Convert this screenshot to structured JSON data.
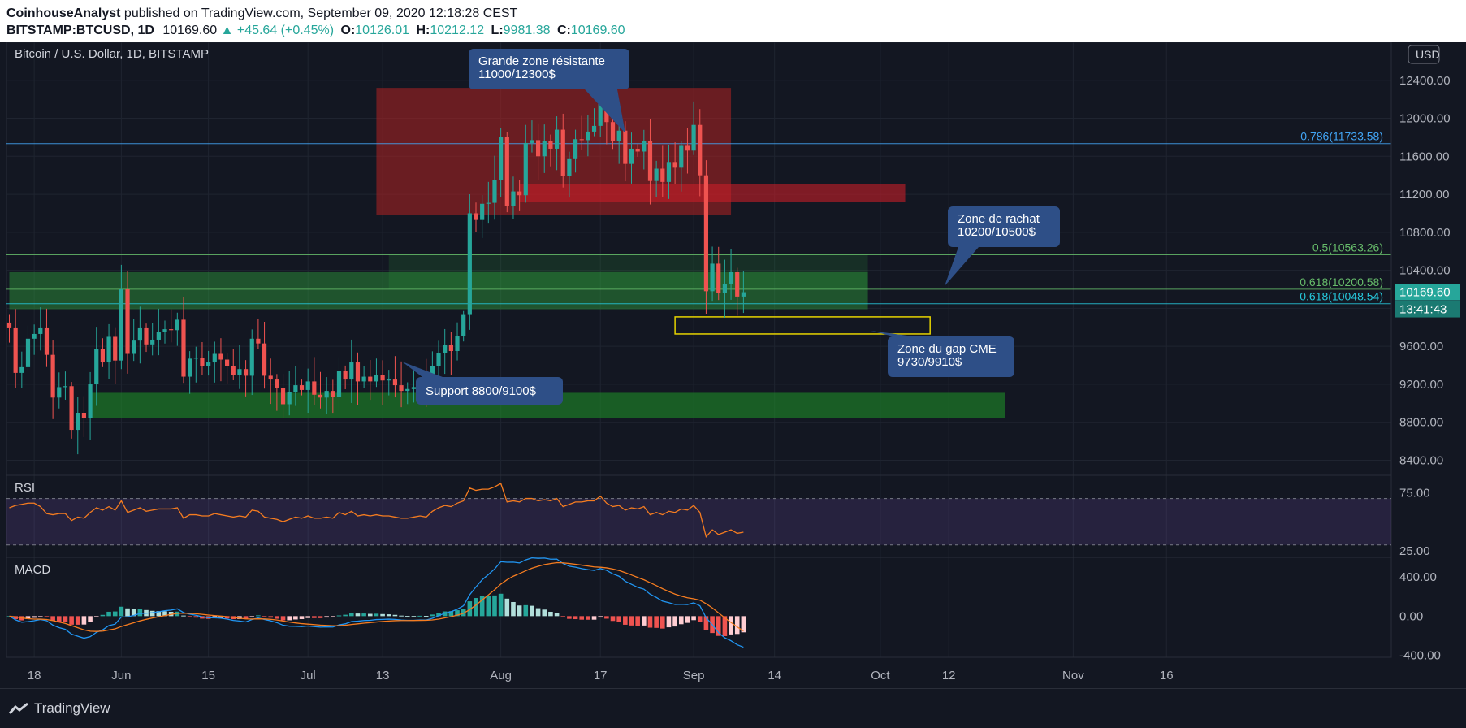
{
  "header": {
    "author": "CoinhouseAnalyst",
    "published_text": " published on TradingView.com, September 09, 2020 12:18:28 CEST",
    "symbol": "BITSTAMP:BTCUSD, 1D",
    "last": "10169.60",
    "change": "▲ +45.64 (+0.45%)",
    "o_label": "O:",
    "o": "10126.01",
    "h_label": "H:",
    "h": "10212.12",
    "l_label": "L:",
    "l": "9981.38",
    "c_label": "C:",
    "c": "10169.60"
  },
  "footer": {
    "brand": "TradingView"
  },
  "colors": {
    "up": "#26a69a",
    "down": "#ef5350",
    "background": "#131722",
    "grid": "#1f2430",
    "text": "#b2b5be",
    "rsi_line": "#f57c20",
    "macd_line": "#2196f3",
    "signal_line": "#f57c20"
  },
  "chart_data": [
    {
      "type": "candlestick",
      "title": "Bitcoin / U.S. Dollar, 1D, BITSTAMP",
      "currency_label": "USD",
      "x_tick_labels": [
        "18",
        "Jun",
        "15",
        "Jul",
        "13",
        "Aug",
        "17",
        "Sep",
        "14",
        "Oct",
        "12",
        "Nov",
        "16"
      ],
      "x_tick_dates": [
        "2020-05-18",
        "2020-06-01",
        "2020-06-15",
        "2020-07-01",
        "2020-07-13",
        "2020-08-01",
        "2020-08-17",
        "2020-09-01",
        "2020-09-14",
        "2020-10-01",
        "2020-10-12",
        "2020-11-01",
        "2020-11-16"
      ],
      "x_range": [
        "2020-05-14",
        "2020-11-16"
      ],
      "y_ticks": [
        8400,
        8800,
        9200,
        9600,
        10000,
        10400,
        10800,
        11200,
        11600,
        12000,
        12400,
        12800
      ],
      "ylim": [
        8250,
        12800
      ],
      "price_label": "10169.60",
      "countdown_label": "13:41:43",
      "closes": [
        {
          "date": "2020-05-14",
          "close": 9790
        },
        {
          "date": "2020-05-15",
          "close": 9320
        },
        {
          "date": "2020-05-16",
          "close": 9380
        },
        {
          "date": "2020-05-17",
          "close": 9680
        },
        {
          "date": "2020-05-18",
          "close": 9730
        },
        {
          "date": "2020-05-19",
          "close": 9790
        },
        {
          "date": "2020-05-20",
          "close": 9510
        },
        {
          "date": "2020-05-21",
          "close": 9060
        },
        {
          "date": "2020-05-22",
          "close": 9170
        },
        {
          "date": "2020-05-23",
          "close": 9180
        },
        {
          "date": "2020-05-24",
          "close": 8720
        },
        {
          "date": "2020-05-25",
          "close": 8900
        },
        {
          "date": "2020-05-26",
          "close": 8840
        },
        {
          "date": "2020-05-27",
          "close": 9200
        },
        {
          "date": "2020-05-28",
          "close": 9570
        },
        {
          "date": "2020-05-29",
          "close": 9430
        },
        {
          "date": "2020-05-30",
          "close": 9700
        },
        {
          "date": "2020-05-31",
          "close": 9450
        },
        {
          "date": "2020-06-01",
          "close": 10200
        },
        {
          "date": "2020-06-02",
          "close": 9520
        },
        {
          "date": "2020-06-03",
          "close": 9660
        },
        {
          "date": "2020-06-04",
          "close": 9790
        },
        {
          "date": "2020-06-05",
          "close": 9620
        },
        {
          "date": "2020-06-06",
          "close": 9670
        },
        {
          "date": "2020-06-07",
          "close": 9750
        },
        {
          "date": "2020-06-08",
          "close": 9780
        },
        {
          "date": "2020-06-09",
          "close": 9770
        },
        {
          "date": "2020-06-10",
          "close": 9880
        },
        {
          "date": "2020-06-11",
          "close": 9280
        },
        {
          "date": "2020-06-12",
          "close": 9470
        },
        {
          "date": "2020-06-13",
          "close": 9480
        },
        {
          "date": "2020-06-14",
          "close": 9390
        },
        {
          "date": "2020-06-15",
          "close": 9430
        },
        {
          "date": "2020-06-16",
          "close": 9520
        },
        {
          "date": "2020-06-17",
          "close": 9460
        },
        {
          "date": "2020-06-18",
          "close": 9390
        },
        {
          "date": "2020-06-19",
          "close": 9300
        },
        {
          "date": "2020-06-20",
          "close": 9360
        },
        {
          "date": "2020-06-21",
          "close": 9290
        },
        {
          "date": "2020-06-22",
          "close": 9680
        },
        {
          "date": "2020-06-23",
          "close": 9630
        },
        {
          "date": "2020-06-24",
          "close": 9290
        },
        {
          "date": "2020-06-25",
          "close": 9250
        },
        {
          "date": "2020-06-26",
          "close": 9160
        },
        {
          "date": "2020-06-27",
          "close": 8990
        },
        {
          "date": "2020-06-28",
          "close": 9120
        },
        {
          "date": "2020-06-29",
          "close": 9190
        },
        {
          "date": "2020-06-30",
          "close": 9140
        },
        {
          "date": "2020-07-01",
          "close": 9230
        },
        {
          "date": "2020-07-02",
          "close": 9090
        },
        {
          "date": "2020-07-03",
          "close": 9060
        },
        {
          "date": "2020-07-04",
          "close": 9130
        },
        {
          "date": "2020-07-05",
          "close": 9070
        },
        {
          "date": "2020-07-06",
          "close": 9340
        },
        {
          "date": "2020-07-07",
          "close": 9250
        },
        {
          "date": "2020-07-08",
          "close": 9430
        },
        {
          "date": "2020-07-09",
          "close": 9230
        },
        {
          "date": "2020-07-10",
          "close": 9280
        },
        {
          "date": "2020-07-11",
          "close": 9230
        },
        {
          "date": "2020-07-12",
          "close": 9300
        },
        {
          "date": "2020-07-13",
          "close": 9240
        },
        {
          "date": "2020-07-14",
          "close": 9250
        },
        {
          "date": "2020-07-15",
          "close": 9190
        },
        {
          "date": "2020-07-16",
          "close": 9130
        },
        {
          "date": "2020-07-17",
          "close": 9150
        },
        {
          "date": "2020-07-18",
          "close": 9170
        },
        {
          "date": "2020-07-19",
          "close": 9210
        },
        {
          "date": "2020-07-20",
          "close": 9160
        },
        {
          "date": "2020-07-21",
          "close": 9390
        },
        {
          "date": "2020-07-22",
          "close": 9530
        },
        {
          "date": "2020-07-23",
          "close": 9610
        },
        {
          "date": "2020-07-24",
          "close": 9550
        },
        {
          "date": "2020-07-25",
          "close": 9710
        },
        {
          "date": "2020-07-26",
          "close": 9930
        },
        {
          "date": "2020-07-27",
          "close": 11000
        },
        {
          "date": "2020-07-28",
          "close": 10930
        },
        {
          "date": "2020-07-29",
          "close": 11100
        },
        {
          "date": "2020-07-30",
          "close": 11110
        },
        {
          "date": "2020-07-31",
          "close": 11350
        },
        {
          "date": "2020-08-01",
          "close": 11800
        },
        {
          "date": "2020-08-02",
          "close": 11080
        },
        {
          "date": "2020-08-03",
          "close": 11230
        },
        {
          "date": "2020-08-04",
          "close": 11190
        },
        {
          "date": "2020-08-05",
          "close": 11740
        },
        {
          "date": "2020-08-06",
          "close": 11770
        },
        {
          "date": "2020-08-07",
          "close": 11600
        },
        {
          "date": "2020-08-08",
          "close": 11760
        },
        {
          "date": "2020-08-09",
          "close": 11680
        },
        {
          "date": "2020-08-10",
          "close": 11880
        },
        {
          "date": "2020-08-11",
          "close": 11390
        },
        {
          "date": "2020-08-12",
          "close": 11570
        },
        {
          "date": "2020-08-13",
          "close": 11780
        },
        {
          "date": "2020-08-14",
          "close": 11770
        },
        {
          "date": "2020-08-15",
          "close": 11860
        },
        {
          "date": "2020-08-16",
          "close": 11920
        },
        {
          "date": "2020-08-17",
          "close": 12300
        },
        {
          "date": "2020-08-18",
          "close": 11960
        },
        {
          "date": "2020-08-19",
          "close": 11760
        },
        {
          "date": "2020-08-20",
          "close": 11870
        },
        {
          "date": "2020-08-21",
          "close": 11520
        },
        {
          "date": "2020-08-22",
          "close": 11680
        },
        {
          "date": "2020-08-23",
          "close": 11650
        },
        {
          "date": "2020-08-24",
          "close": 11760
        },
        {
          "date": "2020-08-25",
          "close": 11340
        },
        {
          "date": "2020-08-26",
          "close": 11470
        },
        {
          "date": "2020-08-27",
          "close": 11330
        },
        {
          "date": "2020-08-28",
          "close": 11540
        },
        {
          "date": "2020-08-29",
          "close": 11480
        },
        {
          "date": "2020-08-30",
          "close": 11710
        },
        {
          "date": "2020-08-31",
          "close": 11660
        },
        {
          "date": "2020-09-01",
          "close": 11930
        },
        {
          "date": "2020-09-02",
          "close": 11400
        },
        {
          "date": "2020-09-03",
          "close": 10180
        },
        {
          "date": "2020-09-04",
          "close": 10470
        },
        {
          "date": "2020-09-05",
          "close": 10160
        },
        {
          "date": "2020-09-06",
          "close": 10260
        },
        {
          "date": "2020-09-07",
          "close": 10380
        },
        {
          "date": "2020-09-08",
          "close": 10124
        },
        {
          "date": "2020-09-09",
          "close": 10169.6
        }
      ],
      "horizontal_levels": [
        {
          "label": "0.786(11733.58)",
          "value": 11733.58,
          "color": "#42a5f5"
        },
        {
          "label": "0.5(10563.26)",
          "value": 10563.26,
          "color": "#66bb6a"
        },
        {
          "label": "0.618(10200.58)",
          "value": 10200.58,
          "color": "#66bb6a"
        },
        {
          "label": "0.618(10048.54)",
          "value": 10048.54,
          "color": "#26c6da"
        }
      ],
      "zones": [
        {
          "from": "2020-07-12",
          "to": "2020-09-07",
          "low": 10980,
          "high": 12320,
          "color": "rgba(178,34,34,0.55)"
        },
        {
          "from": "2020-08-04",
          "to": "2020-10-05",
          "low": 11120,
          "high": 11310,
          "color": "rgba(200,30,40,0.6)"
        },
        {
          "from": "2020-05-14",
          "to": "2020-09-29",
          "low": 9990,
          "high": 10380,
          "color": "rgba(46,160,60,0.45)"
        },
        {
          "from": "2020-07-14",
          "to": "2020-09-29",
          "low": 10200,
          "high": 10570,
          "color": "rgba(46,160,60,0.18)"
        },
        {
          "from": "2020-05-27",
          "to": "2020-10-21",
          "low": 8840,
          "high": 9110,
          "color": "rgba(30,140,40,0.6)"
        }
      ],
      "gap_box": {
        "from": "2020-08-29",
        "to": "2020-10-09",
        "low": 9730,
        "high": 9910
      },
      "annotations": [
        {
          "text": "Grande zone résistante\n11000/12300$"
        },
        {
          "text": "Zone de rachat\n10200/10500$"
        },
        {
          "text": "Zone du gap CME\n9730/9910$"
        },
        {
          "text": "Support 8800/9100$"
        }
      ]
    },
    {
      "type": "line",
      "title": "RSI",
      "y_ticks": [
        25,
        75
      ],
      "y_tick_labels": [
        "25.00",
        "75.00"
      ],
      "ylim": [
        20,
        90
      ],
      "band": [
        30,
        70
      ],
      "values": [
        62,
        64,
        65,
        66,
        66,
        63,
        57,
        56,
        57,
        57,
        51,
        54,
        53,
        58,
        62,
        60,
        63,
        60,
        68,
        58,
        60,
        62,
        59,
        60,
        61,
        61,
        61,
        62,
        53,
        56,
        56,
        55,
        55,
        57,
        56,
        55,
        54,
        55,
        54,
        60,
        59,
        54,
        53,
        52,
        50,
        52,
        54,
        53,
        55,
        53,
        53,
        54,
        53,
        58,
        56,
        59,
        55,
        56,
        55,
        56,
        55,
        55,
        54,
        53,
        53,
        54,
        55,
        54,
        59,
        62,
        64,
        63,
        66,
        68,
        79,
        77,
        78,
        78,
        80,
        83,
        67,
        68,
        67,
        70,
        70,
        68,
        69,
        68,
        70,
        63,
        65,
        67,
        67,
        68,
        68,
        72,
        66,
        63,
        64,
        60,
        62,
        61,
        63,
        56,
        58,
        56,
        59,
        58,
        61,
        60,
        64,
        58,
        37,
        43,
        39,
        41,
        43,
        40,
        41
      ]
    },
    {
      "type": "bar+line",
      "title": "MACD",
      "y_ticks": [
        -400,
        0,
        400
      ],
      "y_tick_labels": [
        "-400.00",
        "0.00",
        "400.00"
      ],
      "ylim": [
        -420,
        600
      ]
    }
  ]
}
